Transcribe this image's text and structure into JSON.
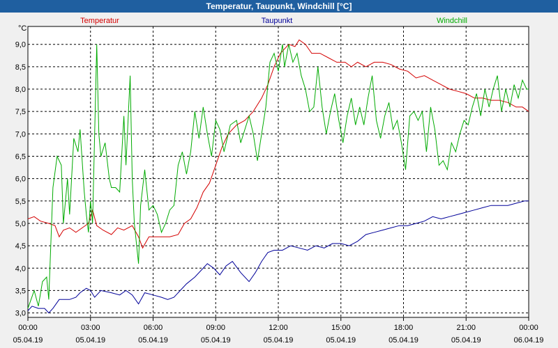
{
  "window": {
    "title": "Temperatur, Taupunkt, Windchill [°C]"
  },
  "chart_data": {
    "type": "line",
    "title": "Temperatur, Taupunkt, Windchill [°C]",
    "ylabel": "°C",
    "xlabel": "",
    "ylim": [
      2.9,
      9.4
    ],
    "xlim": [
      0,
      24
    ],
    "yticks": [
      3.0,
      3.5,
      4.0,
      4.5,
      5.0,
      5.5,
      6.0,
      6.5,
      7.0,
      7.5,
      8.0,
      8.5,
      9.0
    ],
    "ytick_labels": [
      "3,0",
      "3,5",
      "4,0",
      "4,5",
      "5,0",
      "5,5",
      "6,0",
      "6,5",
      "7,0",
      "7,5",
      "8,0",
      "8,5",
      "9,0"
    ],
    "xticks": [
      {
        "x": 0,
        "time": "00:00",
        "date": "05.04.19"
      },
      {
        "x": 3,
        "time": "03:00",
        "date": "05.04.19"
      },
      {
        "x": 6,
        "time": "06:00",
        "date": "05.04.19"
      },
      {
        "x": 9,
        "time": "09:00",
        "date": "05.04.19"
      },
      {
        "x": 12,
        "time": "12:00",
        "date": "05.04.19"
      },
      {
        "x": 15,
        "time": "15:00",
        "date": "05.04.19"
      },
      {
        "x": 18,
        "time": "18:00",
        "date": "05.04.19"
      },
      {
        "x": 21,
        "time": "21:00",
        "date": "05.04.19"
      },
      {
        "x": 24,
        "time": "00:00",
        "date": "06.04.19"
      }
    ],
    "grid": true,
    "legend": "top",
    "series": [
      {
        "name": "Temperatur",
        "color": "#d40000",
        "points": [
          [
            0,
            5.1
          ],
          [
            0.3,
            5.15
          ],
          [
            0.6,
            5.05
          ],
          [
            1.0,
            5.0
          ],
          [
            1.3,
            4.95
          ],
          [
            1.5,
            4.7
          ],
          [
            1.7,
            4.85
          ],
          [
            2.0,
            4.9
          ],
          [
            2.3,
            4.8
          ],
          [
            2.6,
            4.9
          ],
          [
            2.9,
            5.0
          ],
          [
            3.1,
            5.3
          ],
          [
            3.3,
            4.95
          ],
          [
            3.6,
            4.85
          ],
          [
            4.0,
            4.75
          ],
          [
            4.3,
            4.9
          ],
          [
            4.6,
            4.85
          ],
          [
            5.0,
            4.95
          ],
          [
            5.3,
            4.7
          ],
          [
            5.5,
            4.45
          ],
          [
            5.8,
            4.7
          ],
          [
            6.2,
            4.7
          ],
          [
            6.5,
            4.7
          ],
          [
            6.8,
            4.7
          ],
          [
            7.2,
            4.75
          ],
          [
            7.5,
            5.0
          ],
          [
            7.8,
            5.1
          ],
          [
            8.1,
            5.35
          ],
          [
            8.4,
            5.7
          ],
          [
            8.7,
            5.9
          ],
          [
            9.0,
            6.3
          ],
          [
            9.3,
            6.7
          ],
          [
            9.6,
            7.0
          ],
          [
            10.0,
            7.2
          ],
          [
            10.4,
            7.3
          ],
          [
            10.8,
            7.5
          ],
          [
            11.2,
            7.8
          ],
          [
            11.5,
            8.1
          ],
          [
            11.8,
            8.5
          ],
          [
            12.1,
            8.8
          ],
          [
            12.5,
            9.0
          ],
          [
            12.8,
            8.95
          ],
          [
            13.0,
            9.1
          ],
          [
            13.3,
            9.0
          ],
          [
            13.6,
            8.8
          ],
          [
            14.0,
            8.8
          ],
          [
            14.4,
            8.7
          ],
          [
            14.8,
            8.6
          ],
          [
            15.2,
            8.6
          ],
          [
            15.5,
            8.5
          ],
          [
            15.8,
            8.6
          ],
          [
            16.2,
            8.5
          ],
          [
            16.6,
            8.6
          ],
          [
            17.0,
            8.6
          ],
          [
            17.4,
            8.55
          ],
          [
            17.8,
            8.45
          ],
          [
            18.2,
            8.4
          ],
          [
            18.6,
            8.25
          ],
          [
            19.0,
            8.3
          ],
          [
            19.4,
            8.2
          ],
          [
            19.8,
            8.1
          ],
          [
            20.2,
            8.0
          ],
          [
            20.6,
            7.95
          ],
          [
            21.0,
            7.9
          ],
          [
            21.4,
            7.8
          ],
          [
            21.8,
            7.8
          ],
          [
            22.2,
            7.75
          ],
          [
            22.6,
            7.75
          ],
          [
            23.0,
            7.7
          ],
          [
            23.4,
            7.6
          ],
          [
            23.7,
            7.6
          ],
          [
            24.0,
            7.5
          ]
        ]
      },
      {
        "name": "Taupunkt",
        "color": "#000099",
        "points": [
          [
            0,
            3.05
          ],
          [
            0.2,
            3.15
          ],
          [
            0.5,
            3.1
          ],
          [
            0.8,
            3.1
          ],
          [
            1.0,
            3.0
          ],
          [
            1.2,
            3.1
          ],
          [
            1.5,
            3.3
          ],
          [
            2.0,
            3.3
          ],
          [
            2.3,
            3.35
          ],
          [
            2.5,
            3.45
          ],
          [
            2.8,
            3.55
          ],
          [
            3.0,
            3.5
          ],
          [
            3.2,
            3.35
          ],
          [
            3.5,
            3.5
          ],
          [
            4.0,
            3.45
          ],
          [
            4.4,
            3.4
          ],
          [
            4.7,
            3.5
          ],
          [
            5.0,
            3.4
          ],
          [
            5.3,
            3.2
          ],
          [
            5.6,
            3.45
          ],
          [
            6.0,
            3.4
          ],
          [
            6.4,
            3.35
          ],
          [
            6.7,
            3.3
          ],
          [
            7.0,
            3.35
          ],
          [
            7.3,
            3.5
          ],
          [
            7.6,
            3.65
          ],
          [
            8.0,
            3.8
          ],
          [
            8.3,
            3.95
          ],
          [
            8.6,
            4.1
          ],
          [
            8.9,
            4.0
          ],
          [
            9.2,
            3.85
          ],
          [
            9.5,
            4.05
          ],
          [
            9.8,
            4.15
          ],
          [
            10.2,
            3.9
          ],
          [
            10.6,
            3.7
          ],
          [
            10.9,
            3.9
          ],
          [
            11.2,
            4.15
          ],
          [
            11.5,
            4.35
          ],
          [
            11.8,
            4.4
          ],
          [
            12.2,
            4.4
          ],
          [
            12.6,
            4.5
          ],
          [
            13.0,
            4.45
          ],
          [
            13.4,
            4.4
          ],
          [
            13.8,
            4.5
          ],
          [
            14.2,
            4.45
          ],
          [
            14.6,
            4.55
          ],
          [
            15.0,
            4.55
          ],
          [
            15.4,
            4.5
          ],
          [
            15.8,
            4.6
          ],
          [
            16.2,
            4.75
          ],
          [
            16.6,
            4.8
          ],
          [
            17.0,
            4.85
          ],
          [
            17.4,
            4.9
          ],
          [
            17.8,
            4.95
          ],
          [
            18.2,
            4.95
          ],
          [
            18.6,
            5.0
          ],
          [
            19.0,
            5.05
          ],
          [
            19.4,
            5.15
          ],
          [
            19.8,
            5.1
          ],
          [
            20.2,
            5.15
          ],
          [
            20.6,
            5.2
          ],
          [
            21.0,
            5.25
          ],
          [
            21.4,
            5.3
          ],
          [
            21.8,
            5.35
          ],
          [
            22.2,
            5.4
          ],
          [
            22.6,
            5.4
          ],
          [
            23.0,
            5.4
          ],
          [
            23.4,
            5.45
          ],
          [
            23.8,
            5.5
          ],
          [
            24.0,
            5.5
          ]
        ]
      },
      {
        "name": "Windchill",
        "color": "#00aa00",
        "points": [
          [
            0,
            3.1
          ],
          [
            0.3,
            3.5
          ],
          [
            0.5,
            3.15
          ],
          [
            0.7,
            3.7
          ],
          [
            0.9,
            3.8
          ],
          [
            1.0,
            3.3
          ],
          [
            1.2,
            5.8
          ],
          [
            1.4,
            6.5
          ],
          [
            1.6,
            6.3
          ],
          [
            1.7,
            5.0
          ],
          [
            1.9,
            6.0
          ],
          [
            2.0,
            5.2
          ],
          [
            2.2,
            6.9
          ],
          [
            2.4,
            6.6
          ],
          [
            2.5,
            7.1
          ],
          [
            2.7,
            5.7
          ],
          [
            2.8,
            5.2
          ],
          [
            2.9,
            4.8
          ],
          [
            3.0,
            5.5
          ],
          [
            3.1,
            5.0
          ],
          [
            3.3,
            9.0
          ],
          [
            3.4,
            7.0
          ],
          [
            3.5,
            6.5
          ],
          [
            3.7,
            6.8
          ],
          [
            3.9,
            6.0
          ],
          [
            4.0,
            5.8
          ],
          [
            4.2,
            5.8
          ],
          [
            4.4,
            5.7
          ],
          [
            4.6,
            7.4
          ],
          [
            4.7,
            6.3
          ],
          [
            4.9,
            8.3
          ],
          [
            5.0,
            6.0
          ],
          [
            5.1,
            5.0
          ],
          [
            5.3,
            4.1
          ],
          [
            5.4,
            5.4
          ],
          [
            5.6,
            6.2
          ],
          [
            5.8,
            5.3
          ],
          [
            6.0,
            5.4
          ],
          [
            6.2,
            5.2
          ],
          [
            6.4,
            4.8
          ],
          [
            6.6,
            5.0
          ],
          [
            6.8,
            5.3
          ],
          [
            7.0,
            5.4
          ],
          [
            7.2,
            6.3
          ],
          [
            7.4,
            6.6
          ],
          [
            7.6,
            6.1
          ],
          [
            7.8,
            6.6
          ],
          [
            8.0,
            7.5
          ],
          [
            8.2,
            6.9
          ],
          [
            8.4,
            7.6
          ],
          [
            8.6,
            7.0
          ],
          [
            8.8,
            6.5
          ],
          [
            9.0,
            7.3
          ],
          [
            9.2,
            7.1
          ],
          [
            9.4,
            6.6
          ],
          [
            9.7,
            7.2
          ],
          [
            10.0,
            7.3
          ],
          [
            10.2,
            6.8
          ],
          [
            10.4,
            7.1
          ],
          [
            10.6,
            7.4
          ],
          [
            10.8,
            7.0
          ],
          [
            11.0,
            6.4
          ],
          [
            11.2,
            7.0
          ],
          [
            11.4,
            7.6
          ],
          [
            11.6,
            8.6
          ],
          [
            11.8,
            8.8
          ],
          [
            12.0,
            8.4
          ],
          [
            12.2,
            9.0
          ],
          [
            12.3,
            8.5
          ],
          [
            12.5,
            9.0
          ],
          [
            12.7,
            8.6
          ],
          [
            12.9,
            8.8
          ],
          [
            13.1,
            8.3
          ],
          [
            13.3,
            8.0
          ],
          [
            13.5,
            7.5
          ],
          [
            13.7,
            7.6
          ],
          [
            13.9,
            8.5
          ],
          [
            14.1,
            7.6
          ],
          [
            14.3,
            7.0
          ],
          [
            14.5,
            7.5
          ],
          [
            14.7,
            7.9
          ],
          [
            14.9,
            7.3
          ],
          [
            15.1,
            6.8
          ],
          [
            15.3,
            7.4
          ],
          [
            15.5,
            7.8
          ],
          [
            15.7,
            7.2
          ],
          [
            15.9,
            7.6
          ],
          [
            16.1,
            7.2
          ],
          [
            16.3,
            7.8
          ],
          [
            16.5,
            8.3
          ],
          [
            16.7,
            7.3
          ],
          [
            16.9,
            6.9
          ],
          [
            17.1,
            7.4
          ],
          [
            17.3,
            7.7
          ],
          [
            17.5,
            7.1
          ],
          [
            17.7,
            7.3
          ],
          [
            17.9,
            6.8
          ],
          [
            18.1,
            6.2
          ],
          [
            18.3,
            7.4
          ],
          [
            18.5,
            7.5
          ],
          [
            18.7,
            7.3
          ],
          [
            18.9,
            7.5
          ],
          [
            19.1,
            6.6
          ],
          [
            19.3,
            7.6
          ],
          [
            19.5,
            7.1
          ],
          [
            19.7,
            6.3
          ],
          [
            19.9,
            6.4
          ],
          [
            20.1,
            6.2
          ],
          [
            20.3,
            6.8
          ],
          [
            20.5,
            6.6
          ],
          [
            20.7,
            7.0
          ],
          [
            20.9,
            7.3
          ],
          [
            21.1,
            7.2
          ],
          [
            21.3,
            7.6
          ],
          [
            21.5,
            7.9
          ],
          [
            21.7,
            7.4
          ],
          [
            21.9,
            8.0
          ],
          [
            22.1,
            7.6
          ],
          [
            22.3,
            8.0
          ],
          [
            22.5,
            8.3
          ],
          [
            22.7,
            7.5
          ],
          [
            22.9,
            8.0
          ],
          [
            23.1,
            7.6
          ],
          [
            23.3,
            8.1
          ],
          [
            23.5,
            7.8
          ],
          [
            23.7,
            8.2
          ],
          [
            23.9,
            8.0
          ],
          [
            24.0,
            8.0
          ]
        ]
      }
    ]
  }
}
